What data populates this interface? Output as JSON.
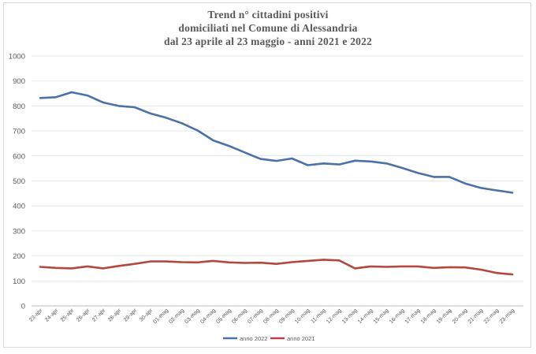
{
  "chart_data": {
    "type": "line",
    "title": [
      "Trend n° cittadini positivi",
      "domiciliati nel Comune di Alessandria",
      "dal 23 aprile al 23 maggio - anni 2021 e 2022"
    ],
    "xlabel": "",
    "ylabel": "",
    "ylim": [
      0,
      1000
    ],
    "yticks": [
      0,
      100,
      200,
      300,
      400,
      500,
      600,
      700,
      800,
      900,
      1000
    ],
    "grid": true,
    "legend_position": "bottom",
    "categories": [
      "23-apr",
      "24-apr",
      "25-apr",
      "26-apr",
      "27-apr",
      "28-apr",
      "29-apr",
      "30-apr",
      "01-mag",
      "02-mag",
      "03-mag",
      "04-mag",
      "05-mag",
      "06-mag",
      "07-mag",
      "08-mag",
      "09-mag",
      "10-mag",
      "11-mag",
      "12-mag",
      "13-mag",
      "14-mag",
      "15-mag",
      "16-mag",
      "17-mag",
      "18-mag",
      "19-mag",
      "20-mag",
      "21-mag",
      "22-mag",
      "23-mag"
    ],
    "series": [
      {
        "name": "anno 2022",
        "color": "#4a72a8",
        "values": [
          832,
          835,
          855,
          842,
          814,
          800,
          795,
          770,
          753,
          731,
          702,
          662,
          640,
          614,
          588,
          580,
          590,
          563,
          570,
          566,
          581,
          578,
          570,
          552,
          532,
          516,
          516,
          490,
          472,
          462,
          453
        ]
      },
      {
        "name": "anno 2021",
        "color": "#b5473f",
        "values": [
          156,
          152,
          150,
          158,
          150,
          160,
          168,
          178,
          178,
          175,
          174,
          180,
          174,
          172,
          173,
          168,
          175,
          180,
          185,
          182,
          150,
          158,
          156,
          158,
          158,
          152,
          155,
          154,
          145,
          132,
          126
        ]
      }
    ]
  }
}
